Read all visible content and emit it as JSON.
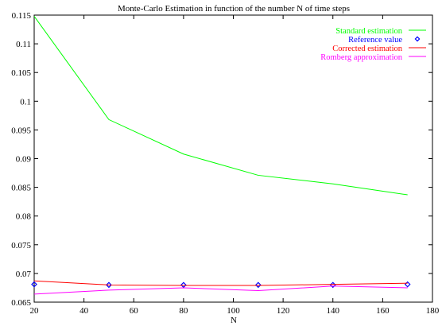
{
  "chart_data": {
    "type": "line",
    "title": "Monte-Carlo Estimation in function of the number N of time steps",
    "xlabel": "N",
    "ylabel": "",
    "xlim": [
      20,
      180
    ],
    "ylim": [
      0.065,
      0.115
    ],
    "xticks": [
      20,
      40,
      60,
      80,
      100,
      120,
      140,
      160,
      180
    ],
    "xtick_labels": [
      "20",
      "40",
      "60",
      "80",
      "100",
      "120",
      "140",
      "160",
      "180"
    ],
    "yticks": [
      0.065,
      0.07,
      0.075,
      0.08,
      0.085,
      0.09,
      0.095,
      0.1,
      0.105,
      0.11,
      0.115
    ],
    "ytick_labels": [
      "0.065",
      "0.07",
      "0.075",
      "0.08",
      "0.085",
      "0.09",
      "0.095",
      "0.1",
      "0.105",
      "0.11",
      "0.115"
    ],
    "grid": false,
    "legend_position": "top-right",
    "x": [
      20,
      50,
      80,
      110,
      140,
      170
    ],
    "series": [
      {
        "name": "Standard estimation",
        "style": "line",
        "color": "#00ff00",
        "values": [
          0.1148,
          0.0968,
          0.0908,
          0.0871,
          0.0856,
          0.0837
        ]
      },
      {
        "name": "Reference value",
        "style": "points",
        "marker": "diamond",
        "color": "#0000ff",
        "values": [
          0.0681,
          0.068,
          0.068,
          0.068,
          0.068,
          0.0681
        ]
      },
      {
        "name": "Corrected estimation",
        "style": "line",
        "color": "#ff0000",
        "values": [
          0.0687,
          0.068,
          0.0679,
          0.0679,
          0.0681,
          0.0683
        ]
      },
      {
        "name": "Romberg approximation",
        "style": "line",
        "color": "#ff00ff",
        "values": [
          0.0664,
          0.0671,
          0.0675,
          0.067,
          0.0678,
          0.0675
        ]
      }
    ]
  }
}
